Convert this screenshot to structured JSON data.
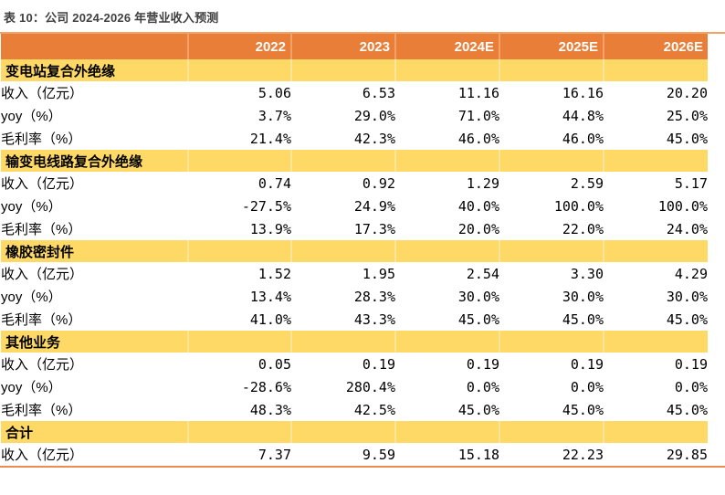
{
  "title": "表 10：公司 2024-2026 年营业收入预测",
  "colors": {
    "header_bg": "#E87E37",
    "header_text": "#FFFFFF",
    "header_divider": "#F2A266",
    "section_bg": "#FFD966",
    "section_divider": "#FFE59B",
    "top_rule": "#F2A266",
    "bottom_rule": "#ED8C52",
    "title_text": "#404040",
    "body_text": "#000000"
  },
  "table": {
    "columns": [
      "",
      "2022",
      "2023",
      "2024E",
      "2025E",
      "2026E"
    ],
    "sections": [
      {
        "name": "变电站复合外绝缘",
        "rows": [
          {
            "label": "收入（亿元）",
            "values": [
              "5.06",
              "6.53",
              "11.16",
              "16.16",
              "20.20"
            ]
          },
          {
            "label": "yoy（%）",
            "values": [
              "3.7%",
              "29.0%",
              "71.0%",
              "44.8%",
              "25.0%"
            ]
          },
          {
            "label": "毛利率（%）",
            "values": [
              "21.4%",
              "42.3%",
              "46.0%",
              "46.0%",
              "45.0%"
            ]
          }
        ]
      },
      {
        "name": "输变电线路复合外绝缘",
        "rows": [
          {
            "label": "收入（亿元）",
            "values": [
              "0.74",
              "0.92",
              "1.29",
              "2.59",
              "5.17"
            ]
          },
          {
            "label": "yoy（%）",
            "values": [
              "-27.5%",
              "24.9%",
              "40.0%",
              "100.0%",
              "100.0%"
            ]
          },
          {
            "label": "毛利率（%）",
            "values": [
              "13.9%",
              "17.3%",
              "20.0%",
              "22.0%",
              "24.0%"
            ]
          }
        ]
      },
      {
        "name": "橡胶密封件",
        "rows": [
          {
            "label": "收入（亿元）",
            "values": [
              "1.52",
              "1.95",
              "2.54",
              "3.30",
              "4.29"
            ]
          },
          {
            "label": "yoy（%）",
            "values": [
              "13.4%",
              "28.3%",
              "30.0%",
              "30.0%",
              "30.0%"
            ]
          },
          {
            "label": "毛利率（%）",
            "values": [
              "41.0%",
              "43.3%",
              "45.0%",
              "45.0%",
              "45.0%"
            ]
          }
        ]
      },
      {
        "name": "其他业务",
        "rows": [
          {
            "label": "收入（亿元）",
            "values": [
              "0.05",
              "0.19",
              "0.19",
              "0.19",
              "0.19"
            ]
          },
          {
            "label": "yoy（%）",
            "values": [
              "-28.6%",
              "280.4%",
              "0.0%",
              "0.0%",
              "0.0%"
            ]
          },
          {
            "label": "毛利率（%）",
            "values": [
              "48.3%",
              "42.5%",
              "45.0%",
              "45.0%",
              "45.0%"
            ]
          }
        ]
      },
      {
        "name": "合计",
        "rows": [
          {
            "label": "收入（亿元）",
            "values": [
              "7.37",
              "9.59",
              "15.18",
              "22.23",
              "29.85"
            ]
          }
        ]
      }
    ]
  }
}
